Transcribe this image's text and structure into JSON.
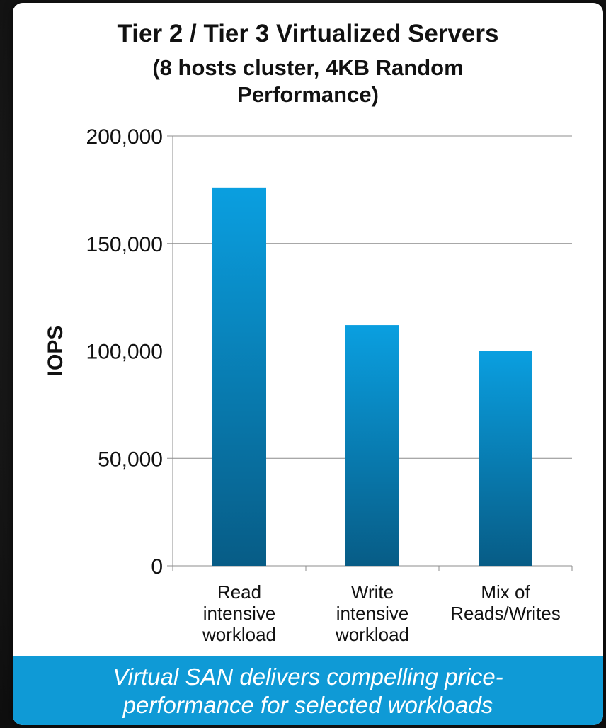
{
  "chart_data": {
    "type": "bar",
    "title_lines": [
      "Tier 2 / Tier 3 Virtualized Servers",
      "(8 hosts cluster, 4KB Random",
      "Performance)"
    ],
    "ylabel": "IOPS",
    "categories": [
      [
        "Read",
        "intensive",
        "workload"
      ],
      [
        "Write",
        "intensive",
        "workload"
      ],
      [
        "Mix of",
        "Reads/Writes"
      ]
    ],
    "values": [
      176000,
      112000,
      100000
    ],
    "ylim": [
      0,
      200000
    ],
    "yticks": [
      "0",
      "50,000",
      "100,000",
      "150,000",
      "200,000"
    ],
    "ytick_values": [
      0,
      50000,
      100000,
      150000,
      200000
    ],
    "grid": true,
    "bar_color_top": "#0a9fe0",
    "bar_color_bottom": "#075c86"
  },
  "banner": {
    "lines": [
      "Virtual SAN delivers compelling price-",
      "performance for selected workloads"
    ],
    "background": "#0f9ad6"
  }
}
